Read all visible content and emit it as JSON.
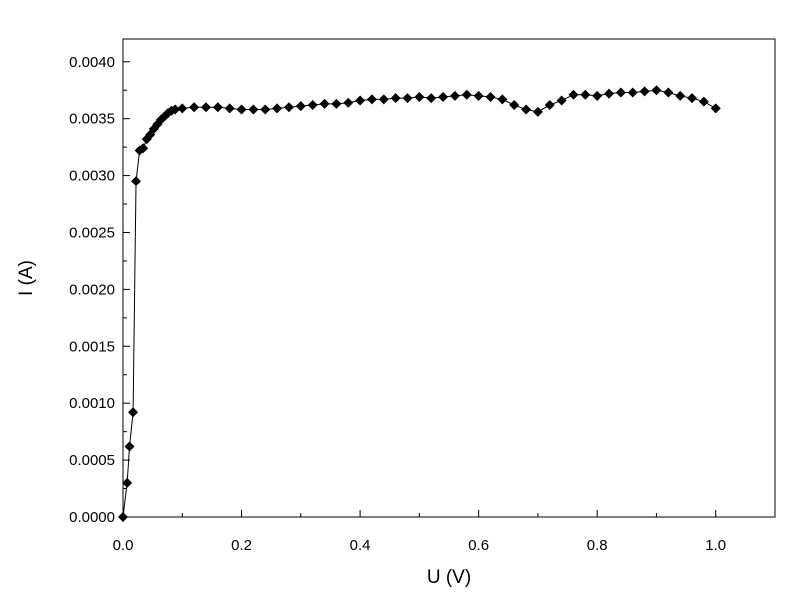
{
  "chart_data": {
    "type": "scatter",
    "xlabel": "U (V)",
    "ylabel": "I (A)",
    "xlim": [
      0.0,
      1.1
    ],
    "ylim": [
      0.0,
      0.0042
    ],
    "x_ticks": [
      "0.0",
      "0.2",
      "0.4",
      "0.6",
      "0.8",
      "1.0"
    ],
    "y_ticks": [
      "0.0000",
      "0.0005",
      "0.0010",
      "0.0015",
      "0.0020",
      "0.0025",
      "0.0030",
      "0.0035",
      "0.0040"
    ],
    "grid": false,
    "legend": "none",
    "marker": "diamond",
    "line": true,
    "color": "#000000",
    "series": [
      {
        "points": [
          [
            0.0,
            0.0
          ],
          [
            0.007,
            0.0003
          ],
          [
            0.011,
            0.00062
          ],
          [
            0.017,
            0.00092
          ],
          [
            0.022,
            0.00295
          ],
          [
            0.028,
            0.00322
          ],
          [
            0.034,
            0.00324
          ],
          [
            0.04,
            0.00332
          ],
          [
            0.046,
            0.00336
          ],
          [
            0.052,
            0.00341
          ],
          [
            0.058,
            0.00345
          ],
          [
            0.064,
            0.00349
          ],
          [
            0.07,
            0.00352
          ],
          [
            0.076,
            0.00355
          ],
          [
            0.082,
            0.00357
          ],
          [
            0.088,
            0.00358
          ],
          [
            0.1,
            0.00359
          ],
          [
            0.12,
            0.0036
          ],
          [
            0.14,
            0.0036
          ],
          [
            0.16,
            0.0036
          ],
          [
            0.18,
            0.00359
          ],
          [
            0.2,
            0.00358
          ],
          [
            0.22,
            0.00358
          ],
          [
            0.24,
            0.00358
          ],
          [
            0.26,
            0.00359
          ],
          [
            0.28,
            0.0036
          ],
          [
            0.3,
            0.00361
          ],
          [
            0.32,
            0.00362
          ],
          [
            0.34,
            0.00363
          ],
          [
            0.36,
            0.00363
          ],
          [
            0.38,
            0.00364
          ],
          [
            0.4,
            0.00366
          ],
          [
            0.42,
            0.00367
          ],
          [
            0.44,
            0.00367
          ],
          [
            0.46,
            0.00368
          ],
          [
            0.48,
            0.00368
          ],
          [
            0.5,
            0.00369
          ],
          [
            0.52,
            0.00368
          ],
          [
            0.54,
            0.00369
          ],
          [
            0.56,
            0.0037
          ],
          [
            0.58,
            0.00371
          ],
          [
            0.6,
            0.0037
          ],
          [
            0.62,
            0.00369
          ],
          [
            0.64,
            0.00367
          ],
          [
            0.66,
            0.00362
          ],
          [
            0.68,
            0.00358
          ],
          [
            0.7,
            0.00356
          ],
          [
            0.72,
            0.00362
          ],
          [
            0.74,
            0.00366
          ],
          [
            0.76,
            0.00371
          ],
          [
            0.78,
            0.00371
          ],
          [
            0.8,
            0.0037
          ],
          [
            0.82,
            0.00372
          ],
          [
            0.84,
            0.00373
          ],
          [
            0.86,
            0.00373
          ],
          [
            0.88,
            0.00374
          ],
          [
            0.9,
            0.00375
          ],
          [
            0.92,
            0.00373
          ],
          [
            0.94,
            0.0037
          ],
          [
            0.96,
            0.00368
          ],
          [
            0.98,
            0.00365
          ],
          [
            1.0,
            0.00359
          ]
        ]
      }
    ]
  }
}
